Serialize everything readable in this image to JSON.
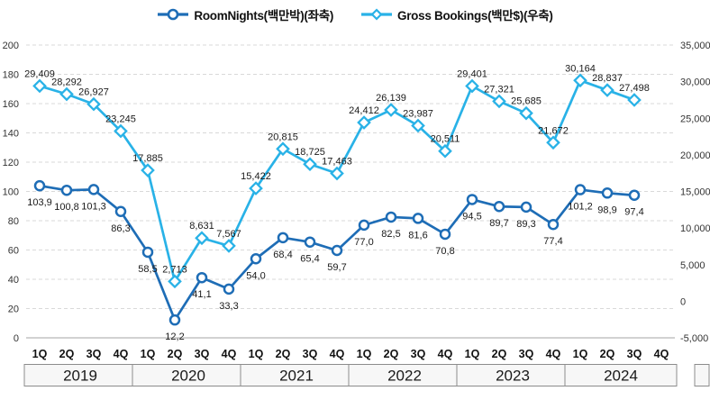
{
  "legend": {
    "position": "top-center",
    "series": [
      {
        "label": "RoomNights(백만박)(좌축)",
        "marker": "circle",
        "color": "#1e6db6"
      },
      {
        "label": "Gross Bookings(백만$)(우축)",
        "marker": "diamond",
        "color": "#29b2e7"
      }
    ]
  },
  "chart_data": {
    "type": "line",
    "quarter_labels": [
      "1Q",
      "2Q",
      "3Q",
      "4Q"
    ],
    "years": [
      "2019",
      "2020",
      "2021",
      "2022",
      "2023",
      "2024"
    ],
    "series": [
      {
        "name": "RoomNights(백만박)(좌축)",
        "axis": "left",
        "marker": "circle",
        "color": "#1e6db6",
        "label_side": "below",
        "values": [
          103.9,
          100.8,
          101.3,
          86.3,
          58.5,
          12.2,
          41.1,
          33.3,
          54.0,
          68.4,
          65.4,
          59.7,
          77.0,
          82.5,
          81.6,
          70.8,
          94.5,
          89.7,
          89.3,
          77.4,
          101.2,
          98.9,
          97.4
        ],
        "labels": [
          "103,9",
          "100,8",
          "101,3",
          "86,3",
          "58,5",
          "12,2",
          "41,1",
          "33,3",
          "54,0",
          "68,4",
          "65,4",
          "59,7",
          "77,0",
          "82,5",
          "81,6",
          "70,8",
          "94,5",
          "89,7",
          "89,3",
          "77,4",
          "101,2",
          "98,9",
          "97,4"
        ]
      },
      {
        "name": "Gross Bookings(백만$)(우축)",
        "axis": "right",
        "marker": "diamond",
        "color": "#29b2e7",
        "label_side": "above",
        "values": [
          29409,
          28292,
          26927,
          23245,
          17885,
          2713,
          8631,
          7567,
          15422,
          20815,
          18725,
          17463,
          24412,
          26139,
          23987,
          20511,
          29401,
          27321,
          25685,
          21672,
          30164,
          28837,
          27498
        ],
        "labels": [
          "29,409",
          "28,292",
          "26,927",
          "23,245",
          "17,885",
          "2,713",
          "8,631",
          "7,567",
          "15,422",
          "20,815",
          "18,725",
          "17,463",
          "24,412",
          "26,139",
          "23,987",
          "20,511",
          "29,401",
          "27,321",
          "25,685",
          "21,672",
          "30,164",
          "28,837",
          "27,498"
        ]
      }
    ],
    "left_axis": {
      "min": 0,
      "max": 200,
      "step": 20,
      "tick_labels": [
        "0",
        "20",
        "40",
        "60",
        "80",
        "100",
        "120",
        "140",
        "160",
        "180",
        "200"
      ]
    },
    "right_axis": {
      "min": -5000,
      "max": 35000,
      "step": 5000,
      "tick_labels": [
        "-5,000",
        "0",
        "5,000",
        "10,000",
        "15,000",
        "20,000",
        "25,000",
        "30,000",
        "35,000"
      ]
    },
    "grid": "horizontal-dashed",
    "colors": {
      "gridline": "#d9d9d9",
      "axis_line": "#a6a6a6",
      "year_band_fill": "#f7f7f7",
      "year_band_border": "#8c8c8c",
      "label_text": "#1a1a1a"
    }
  }
}
